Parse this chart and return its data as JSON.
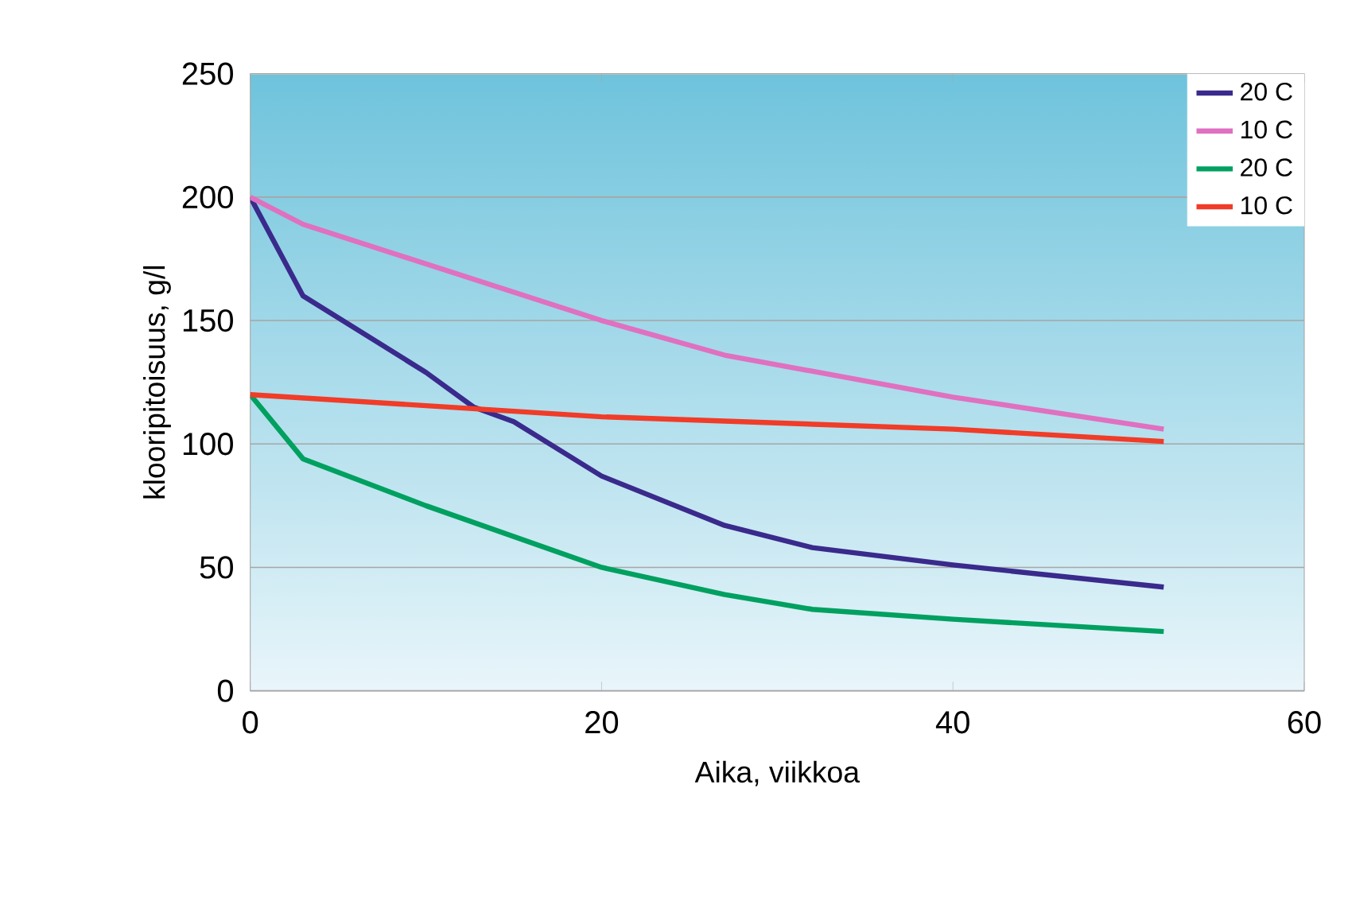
{
  "chart_data": {
    "type": "line",
    "xlabel": "Aika, viikkoa",
    "ylabel": "klooripitoisuus, g/l",
    "xlim": [
      0,
      60
    ],
    "ylim": [
      0,
      250
    ],
    "xticks": [
      0,
      20,
      40,
      60
    ],
    "yticks": [
      0,
      50,
      100,
      150,
      200,
      250
    ],
    "grid": "y",
    "legend": "top right",
    "line_style": "solid",
    "marker": "none",
    "series": [
      {
        "name": "20 C",
        "color": "#3a2a8c",
        "x": [
          0,
          3,
          10,
          12.7,
          15,
          20,
          27,
          32,
          40,
          52
        ],
        "values": [
          200,
          160,
          129,
          115,
          109,
          87,
          67,
          58,
          51,
          42
        ]
      },
      {
        "name": "10 C",
        "color": "#e070c0",
        "x": [
          0,
          3,
          20,
          27,
          40,
          52
        ],
        "values": [
          200,
          189,
          150,
          136,
          119,
          106
        ]
      },
      {
        "name": "20 C",
        "color": "#00a060",
        "x": [
          0,
          3,
          10,
          20,
          27,
          32,
          40,
          52
        ],
        "values": [
          120,
          94,
          75,
          50,
          39,
          33,
          29,
          24
        ]
      },
      {
        "name": "10 C",
        "color": "#f03c28",
        "x": [
          0,
          20,
          40,
          52
        ],
        "values": [
          120,
          111,
          106,
          101
        ]
      }
    ]
  }
}
